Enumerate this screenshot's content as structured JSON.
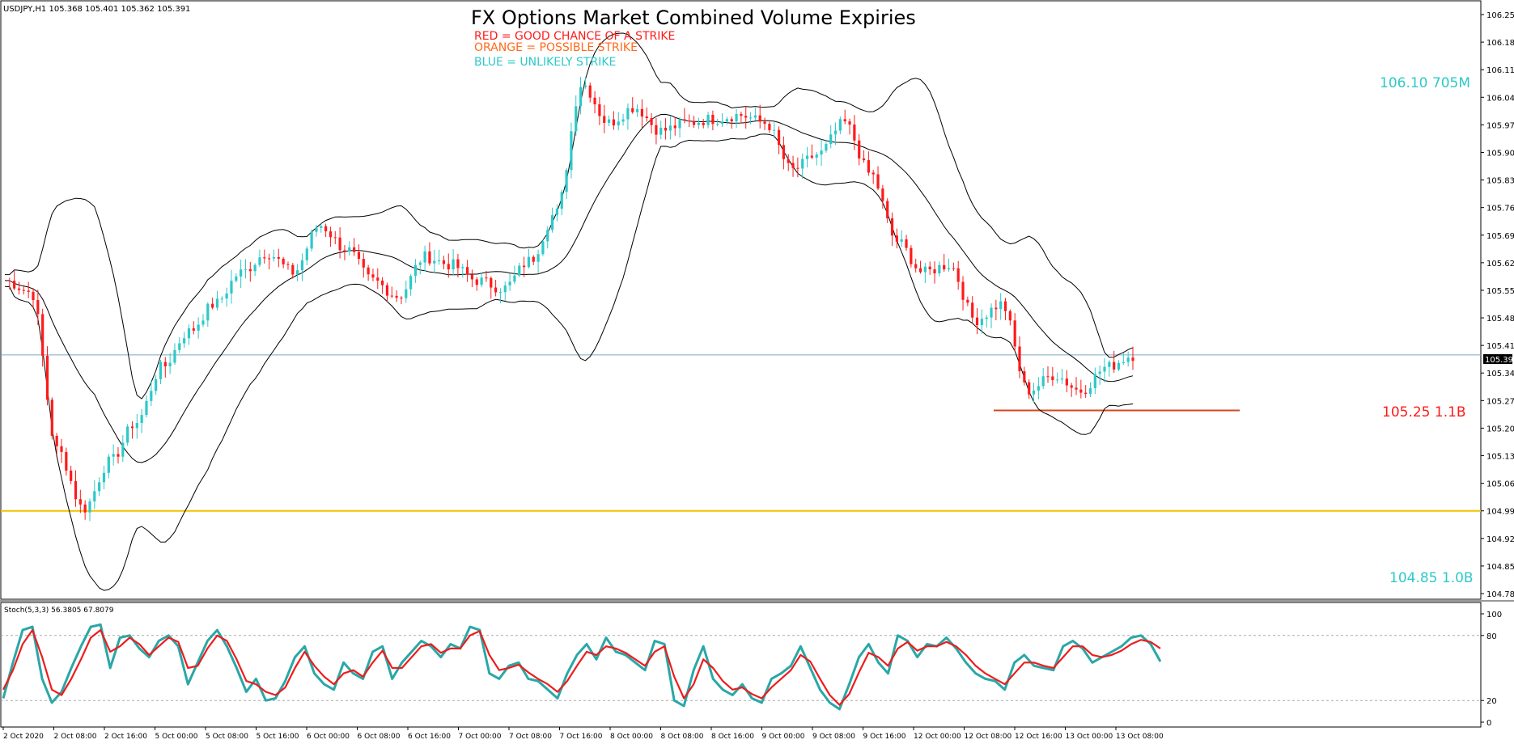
{
  "header": {
    "symbol_info": "USDJPY,H1  105.368 105.401 105.362 105.391",
    "title": "FX Options Market Combined Volume Expiries",
    "legend": [
      {
        "text": "RED = GOOD CHANCE OF A STRIKE",
        "color": "#ff1a1a"
      },
      {
        "text": "ORANGE = POSSIBLE STRIKE",
        "color": "#ff6a1a"
      },
      {
        "text": "BLUE = UNLIKELY STRIKE",
        "color": "#2ec8c8"
      }
    ]
  },
  "expiry_annotations": [
    {
      "text": "106.10 705M",
      "price": 106.1,
      "color": "#2ec8c8"
    },
    {
      "text": "105.25 1.1B",
      "price": 105.25,
      "color": "#ff1a1a"
    },
    {
      "text": "104.85 1.0B",
      "price": 104.85,
      "color": "#2ec8c8"
    }
  ],
  "current_price_label": "105.391",
  "stoch_label": "Stoch(5,3,3) 56.3805 67.8079",
  "colors": {
    "bull": "#2ec8c8",
    "bear": "#ff1a1a",
    "stoch_main": "#2aa7a7",
    "stoch_signal": "#ee1c1c",
    "level_line": "#f2c200",
    "strike_line": "#d4471f",
    "price_line": "#7da7c0"
  },
  "chart_data": [
    {
      "type": "candlestick",
      "title": "FX Options Market Combined Volume Expiries",
      "symbol": "USDJPY",
      "timeframe": "H1",
      "ylim": [
        104.785,
        106.28
      ],
      "y_ticks": [
        "106.255",
        "106.185",
        "106.115",
        "106.045",
        "105.975",
        "105.905",
        "105.835",
        "105.765",
        "105.695",
        "105.625",
        "105.555",
        "105.485",
        "105.415",
        "105.345",
        "105.275",
        "105.205",
        "105.135",
        "105.065",
        "104.995",
        "104.925",
        "104.855",
        "104.785"
      ],
      "x_ticks": [
        "2 Oct 2020",
        "2 Oct 08:00",
        "2 Oct 16:00",
        "5 Oct 00:00",
        "5 Oct 08:00",
        "5 Oct 16:00",
        "6 Oct 00:00",
        "6 Oct 08:00",
        "6 Oct 16:00",
        "7 Oct 00:00",
        "7 Oct 08:00",
        "7 Oct 16:00",
        "8 Oct 00:00",
        "8 Oct 08:00",
        "8 Oct 16:00",
        "9 Oct 00:00",
        "9 Oct 08:00",
        "9 Oct 16:00",
        "12 Oct 00:00",
        "12 Oct 08:00",
        "12 Oct 16:00",
        "13 Oct 00:00",
        "13 Oct 08:00"
      ],
      "price_keys": [
        105.58,
        105.55,
        105.15,
        105.0,
        105.12,
        105.22,
        105.36,
        105.45,
        105.52,
        105.6,
        105.65,
        105.6,
        105.72,
        105.66,
        105.58,
        105.54,
        105.64,
        105.62,
        105.58,
        105.56,
        105.63,
        105.75,
        106.08,
        105.98,
        106.02,
        105.96,
        105.98,
        105.99,
        106.0,
        105.98,
        105.86,
        105.9,
        105.98,
        105.85,
        105.68,
        105.6,
        105.62,
        105.48,
        105.52,
        105.3,
        105.34,
        105.3,
        105.36,
        105.39
      ],
      "series": [],
      "horizontal_lines": [
        104.995,
        105.25
      ],
      "current_price": 105.391
    },
    {
      "type": "line",
      "title": "Stoch(5,3,3) 56.3805 67.8079",
      "ylim": [
        0,
        100
      ],
      "y_ticks": [
        "100",
        "80",
        "20",
        "0"
      ],
      "series": [
        {
          "name": "",
          "values": [
            22,
            55,
            85,
            88,
            40,
            18,
            28,
            50,
            70,
            88,
            90,
            50,
            78,
            80,
            68,
            60,
            75,
            80,
            70,
            35,
            55,
            75,
            85,
            70,
            50,
            28,
            40,
            20,
            22,
            38,
            60,
            70,
            45,
            35,
            30,
            55,
            45,
            40,
            65,
            70,
            40,
            55,
            65,
            75,
            70,
            60,
            72,
            68,
            88,
            85,
            45,
            40,
            52,
            55,
            40,
            38,
            30,
            22,
            45,
            62,
            72,
            58,
            78,
            65,
            62,
            55,
            48,
            75,
            72,
            20,
            15,
            48,
            70,
            40,
            30,
            25,
            35,
            22,
            18,
            40,
            45,
            52,
            70,
            50,
            30,
            18,
            12,
            35,
            60,
            72,
            55,
            45,
            80,
            75,
            60,
            72,
            70,
            78,
            68,
            55,
            45,
            40,
            38,
            30,
            55,
            62,
            52,
            50,
            48,
            70,
            75,
            68,
            55,
            60,
            65,
            70,
            78,
            80,
            72,
            56
          ]
        },
        {
          "name": "",
          "values": [
            30,
            48,
            72,
            85,
            60,
            30,
            25,
            40,
            58,
            78,
            85,
            65,
            70,
            78,
            72,
            62,
            70,
            78,
            74,
            50,
            52,
            68,
            80,
            75,
            58,
            38,
            35,
            28,
            25,
            32,
            50,
            65,
            52,
            42,
            35,
            45,
            48,
            42,
            55,
            66,
            50,
            50,
            60,
            70,
            72,
            64,
            68,
            68,
            80,
            84,
            62,
            48,
            50,
            53,
            46,
            40,
            35,
            28,
            38,
            52,
            65,
            62,
            70,
            68,
            64,
            58,
            52,
            65,
            70,
            42,
            22,
            35,
            58,
            50,
            38,
            30,
            32,
            26,
            22,
            32,
            40,
            48,
            62,
            56,
            40,
            25,
            16,
            26,
            46,
            64,
            60,
            52,
            68,
            74,
            66,
            70,
            70,
            74,
            70,
            62,
            52,
            45,
            40,
            35,
            45,
            55,
            55,
            52,
            50,
            60,
            70,
            70,
            62,
            60,
            62,
            66,
            72,
            76,
            74,
            68
          ]
        }
      ],
      "guides": [
        80,
        20
      ]
    }
  ]
}
